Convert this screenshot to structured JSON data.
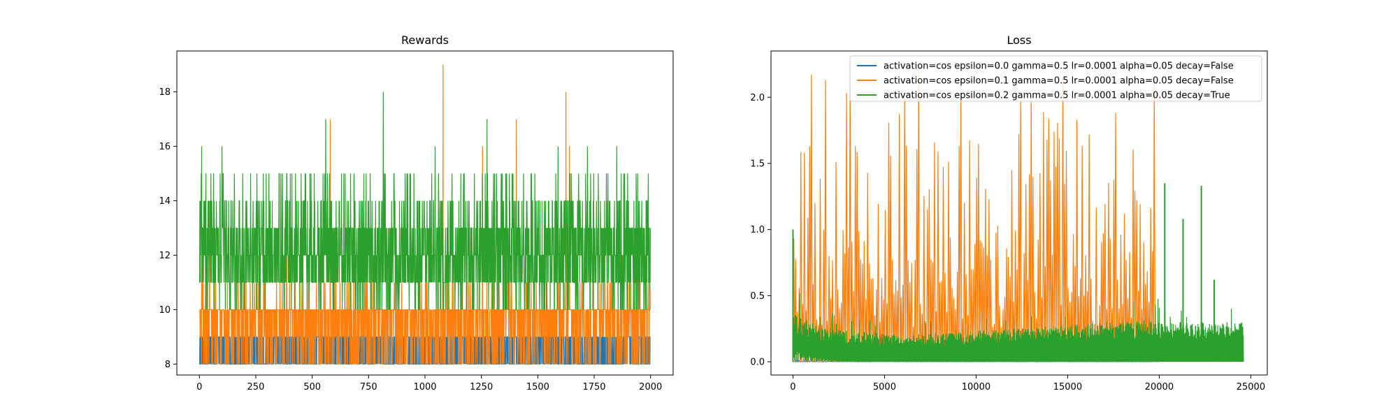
{
  "chart_data": [
    {
      "type": "line",
      "title": "Rewards",
      "xlabel": "",
      "ylabel": "",
      "xlim": [
        -100,
        2100
      ],
      "ylim": [
        7.6,
        19.5
      ],
      "xticks": [
        0,
        250,
        500,
        750,
        1000,
        1250,
        1500,
        1750,
        2000
      ],
      "yticks": [
        8,
        10,
        12,
        14,
        16,
        18
      ],
      "grid": false,
      "legend": null,
      "n_points": 2000,
      "series": [
        {
          "color": "#1f77b4",
          "description": "mostly 8 to 9",
          "typical_range": [
            8,
            9
          ],
          "spikes": []
        },
        {
          "color": "#ff7f0e",
          "description": "mostly 8 to 10, occasional spikes",
          "typical_range": [
            8,
            10
          ],
          "spikes": [
            {
              "x": 15,
              "y": 13
            },
            {
              "x": 45,
              "y": 14
            },
            {
              "x": 285,
              "y": 14
            },
            {
              "x": 580,
              "y": 17
            },
            {
              "x": 685,
              "y": 15
            },
            {
              "x": 1080,
              "y": 19
            },
            {
              "x": 1255,
              "y": 16
            },
            {
              "x": 1405,
              "y": 17
            },
            {
              "x": 1625,
              "y": 18
            },
            {
              "x": 1640,
              "y": 16
            }
          ]
        },
        {
          "color": "#2ca02c",
          "description": "mostly 10 to 15, occasional spikes",
          "typical_range": [
            10,
            15
          ],
          "spikes": [
            {
              "x": 10,
              "y": 16
            },
            {
              "x": 100,
              "y": 16
            },
            {
              "x": 560,
              "y": 17
            },
            {
              "x": 815,
              "y": 18
            },
            {
              "x": 1045,
              "y": 16
            },
            {
              "x": 1275,
              "y": 17
            },
            {
              "x": 1590,
              "y": 16
            },
            {
              "x": 1720,
              "y": 16
            },
            {
              "x": 1850,
              "y": 16
            }
          ]
        }
      ]
    },
    {
      "type": "line",
      "title": "Loss",
      "xlabel": "",
      "ylabel": "",
      "xlim": [
        -1200,
        25900
      ],
      "ylim": [
        -0.1,
        2.35
      ],
      "xticks": [
        0,
        5000,
        10000,
        15000,
        20000,
        25000
      ],
      "yticks": [
        0.0,
        0.5,
        1.0,
        1.5,
        2.0
      ],
      "ytick_labels": [
        "0.0",
        "0.5",
        "1.0",
        "1.5",
        "2.0"
      ],
      "grid": false,
      "legend": "top-right",
      "series": [
        {
          "name": "activation=cos epsilon=0.0 gamma=0.5 lr=0.0001 alpha=0.05 decay=False",
          "color": "#1f77b4",
          "x_range": [
            0,
            20000
          ],
          "description": "near 0, hidden beneath other series"
        },
        {
          "name": "activation=cos epsilon=0.1 gamma=0.5 lr=0.0001 alpha=0.05 decay=False",
          "color": "#ff7f0e",
          "x_range": [
            0,
            19800
          ],
          "description": "highly spiky, peaks up to about 2.2 between 0 and 19800",
          "peak_max": 2.2
        },
        {
          "name": "activation=cos epsilon=0.2 gamma=0.5 lr=0.0001 alpha=0.05 decay=True",
          "color": "#2ca02c",
          "x_range": [
            0,
            24600
          ],
          "description": "band from 0 to about 0.35 early, decaying to about 0.2, with spikes",
          "spikes": [
            {
              "x": 0,
              "y": 1.0
            },
            {
              "x": 20300,
              "y": 1.35
            },
            {
              "x": 21300,
              "y": 1.08
            },
            {
              "x": 22300,
              "y": 1.33
            },
            {
              "x": 23000,
              "y": 0.62
            }
          ]
        }
      ]
    }
  ]
}
